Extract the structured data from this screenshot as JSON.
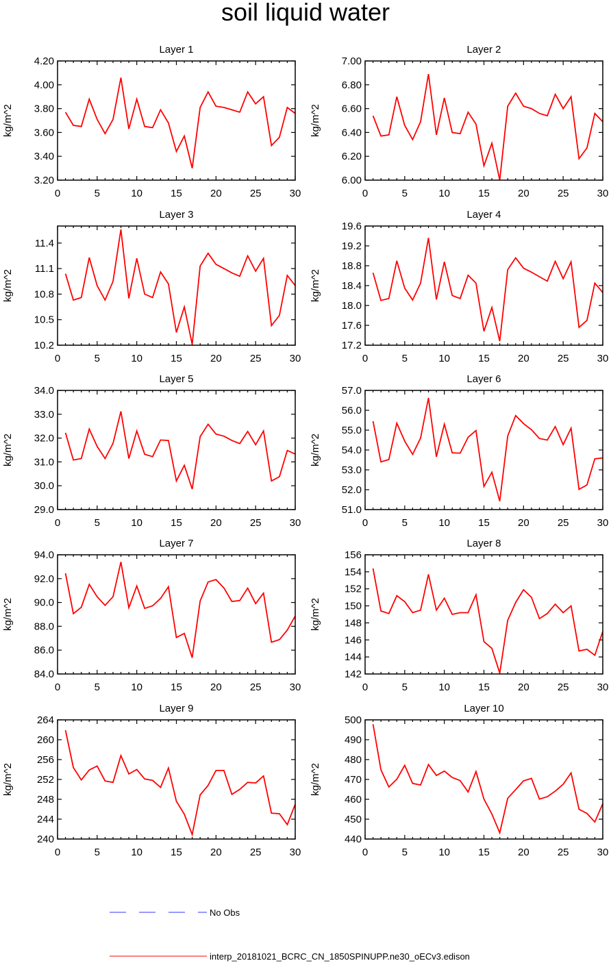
{
  "title": "soil liquid water",
  "legend": {
    "obs_label": "No Obs",
    "obs_color": "#3333ff",
    "model_label": "interp_20181021_BCRC_CN_1850SPINUPP.ne30_oECv3.edison",
    "model_color": "#ff0000"
  },
  "chart_data": [
    {
      "type": "line",
      "title": "Layer 1",
      "ylabel": "kg/m^2",
      "xlim": [
        0,
        30
      ],
      "ylim": [
        3.2,
        4.2
      ],
      "xticks": [
        0,
        5,
        10,
        15,
        20,
        25,
        30
      ],
      "yticks": [
        "3.20",
        "3.40",
        "3.60",
        "3.80",
        "4.00",
        "4.20"
      ],
      "x": [
        1,
        2,
        3,
        4,
        5,
        6,
        7,
        8,
        9,
        10,
        11,
        12,
        13,
        14,
        15,
        16,
        17,
        18,
        19,
        20,
        21,
        22,
        23,
        24,
        25,
        26,
        27,
        28,
        29,
        30
      ],
      "series": [
        {
          "values": [
            3.77,
            3.66,
            3.65,
            3.88,
            3.71,
            3.59,
            3.71,
            4.06,
            3.63,
            3.88,
            3.65,
            3.64,
            3.79,
            3.68,
            3.44,
            3.57,
            3.3,
            3.81,
            3.94,
            3.82,
            3.81,
            3.79,
            3.77,
            3.94,
            3.84,
            3.9,
            3.49,
            3.56,
            3.81,
            3.76
          ]
        }
      ]
    },
    {
      "type": "line",
      "title": "Layer 2",
      "ylabel": "kg/m^2",
      "xlim": [
        0,
        30
      ],
      "ylim": [
        6.0,
        7.0
      ],
      "xticks": [
        0,
        5,
        10,
        15,
        20,
        25,
        30
      ],
      "yticks": [
        "6.00",
        "6.20",
        "6.40",
        "6.60",
        "6.80",
        "7.00"
      ],
      "x": [
        1,
        2,
        3,
        4,
        5,
        6,
        7,
        8,
        9,
        10,
        11,
        12,
        13,
        14,
        15,
        16,
        17,
        18,
        19,
        20,
        21,
        22,
        23,
        24,
        25,
        26,
        27,
        28,
        29,
        30
      ],
      "series": [
        {
          "values": [
            6.54,
            6.37,
            6.38,
            6.7,
            6.46,
            6.34,
            6.49,
            6.89,
            6.38,
            6.69,
            6.4,
            6.39,
            6.57,
            6.47,
            6.12,
            6.31,
            6.0,
            6.62,
            6.73,
            6.62,
            6.6,
            6.56,
            6.54,
            6.72,
            6.6,
            6.7,
            6.18,
            6.27,
            6.56,
            6.49
          ]
        }
      ]
    },
    {
      "type": "line",
      "title": "Layer 3",
      "ylabel": "kg/m^2",
      "xlim": [
        0,
        30
      ],
      "ylim": [
        10.2,
        11.6
      ],
      "xticks": [
        0,
        5,
        10,
        15,
        20,
        25,
        30
      ],
      "yticks": [
        "10.2",
        "10.5",
        "10.8",
        "11.1",
        "11.4"
      ],
      "x": [
        1,
        2,
        3,
        4,
        5,
        6,
        7,
        8,
        9,
        10,
        11,
        12,
        13,
        14,
        15,
        16,
        17,
        18,
        19,
        20,
        21,
        22,
        23,
        24,
        25,
        26,
        27,
        28,
        29,
        30
      ],
      "series": [
        {
          "values": [
            11.04,
            10.73,
            10.76,
            11.23,
            10.9,
            10.73,
            10.95,
            11.56,
            10.75,
            11.22,
            10.8,
            10.76,
            11.06,
            10.92,
            10.35,
            10.65,
            10.21,
            11.13,
            11.28,
            11.15,
            11.1,
            11.05,
            11.01,
            11.25,
            11.07,
            11.22,
            10.43,
            10.55,
            11.02,
            10.9
          ]
        }
      ]
    },
    {
      "type": "line",
      "title": "Layer 4",
      "ylabel": "kg/m^2",
      "xlim": [
        0,
        30
      ],
      "ylim": [
        17.2,
        19.6
      ],
      "xticks": [
        0,
        5,
        10,
        15,
        20,
        25,
        30
      ],
      "yticks": [
        "17.2",
        "17.6",
        "18.0",
        "18.4",
        "18.8",
        "19.2",
        "19.6"
      ],
      "x": [
        1,
        2,
        3,
        4,
        5,
        6,
        7,
        8,
        9,
        10,
        11,
        12,
        13,
        14,
        15,
        16,
        17,
        18,
        19,
        20,
        21,
        22,
        23,
        24,
        25,
        26,
        27,
        28,
        29,
        30
      ],
      "series": [
        {
          "values": [
            18.66,
            18.1,
            18.14,
            18.9,
            18.35,
            18.11,
            18.45,
            19.36,
            18.12,
            18.88,
            18.2,
            18.14,
            18.61,
            18.45,
            17.48,
            17.96,
            17.28,
            18.72,
            18.96,
            18.75,
            18.67,
            18.58,
            18.49,
            18.89,
            18.54,
            18.88,
            17.56,
            17.7,
            18.45,
            18.26
          ]
        }
      ]
    },
    {
      "type": "line",
      "title": "Layer 5",
      "ylabel": "kg/m^2",
      "xlim": [
        0,
        30
      ],
      "ylim": [
        29.0,
        34.0
      ],
      "xticks": [
        0,
        5,
        10,
        15,
        20,
        25,
        30
      ],
      "yticks": [
        "29.0",
        "30.0",
        "31.0",
        "32.0",
        "33.0",
        "34.0"
      ],
      "x": [
        1,
        2,
        3,
        4,
        5,
        6,
        7,
        8,
        9,
        10,
        11,
        12,
        13,
        14,
        15,
        16,
        17,
        18,
        19,
        20,
        21,
        22,
        23,
        24,
        25,
        26,
        27,
        28,
        29,
        30
      ],
      "series": [
        {
          "values": [
            32.22,
            31.08,
            31.14,
            32.38,
            31.65,
            31.14,
            31.78,
            33.12,
            31.14,
            32.3,
            31.32,
            31.22,
            31.92,
            31.9,
            30.2,
            30.86,
            29.86,
            32.06,
            32.58,
            32.17,
            32.08,
            31.9,
            31.77,
            32.28,
            31.72,
            32.3,
            30.2,
            30.38,
            31.48,
            31.33
          ]
        }
      ]
    },
    {
      "type": "line",
      "title": "Layer 6",
      "ylabel": "kg/m^2",
      "xlim": [
        0,
        30
      ],
      "ylim": [
        51.0,
        57.0
      ],
      "xticks": [
        0,
        5,
        10,
        15,
        20,
        25,
        30
      ],
      "yticks": [
        "51.0",
        "52.0",
        "53.0",
        "54.0",
        "55.0",
        "56.0",
        "57.0"
      ],
      "x": [
        1,
        2,
        3,
        4,
        5,
        6,
        7,
        8,
        9,
        10,
        11,
        12,
        13,
        14,
        15,
        16,
        17,
        18,
        19,
        20,
        21,
        22,
        23,
        24,
        25,
        26,
        27,
        28,
        29,
        30
      ],
      "series": [
        {
          "values": [
            55.45,
            53.4,
            53.52,
            55.35,
            54.45,
            53.78,
            54.6,
            56.62,
            53.66,
            55.3,
            53.86,
            53.84,
            54.64,
            54.98,
            52.16,
            52.88,
            51.42,
            54.7,
            55.73,
            55.33,
            55.02,
            54.58,
            54.5,
            55.18,
            54.27,
            55.1,
            52.02,
            52.24,
            53.56,
            53.6
          ]
        }
      ]
    },
    {
      "type": "line",
      "title": "Layer 7",
      "ylabel": "kg/m^2",
      "xlim": [
        0,
        30
      ],
      "ylim": [
        84.0,
        94.0
      ],
      "xticks": [
        0,
        5,
        10,
        15,
        20,
        25,
        30
      ],
      "yticks": [
        "84.0",
        "86.0",
        "88.0",
        "90.0",
        "92.0",
        "94.0"
      ],
      "x": [
        1,
        2,
        3,
        4,
        5,
        6,
        7,
        8,
        9,
        10,
        11,
        12,
        13,
        14,
        15,
        16,
        17,
        18,
        19,
        20,
        21,
        22,
        23,
        24,
        25,
        26,
        27,
        28,
        29,
        30
      ],
      "series": [
        {
          "values": [
            92.44,
            89.06,
            89.6,
            91.52,
            90.48,
            89.76,
            90.48,
            93.4,
            89.56,
            91.38,
            89.5,
            89.72,
            90.34,
            91.32,
            87.06,
            87.4,
            85.36,
            90.12,
            91.72,
            91.92,
            91.22,
            90.08,
            90.16,
            91.2,
            89.9,
            90.78,
            86.66,
            86.88,
            87.68,
            88.86
          ]
        }
      ]
    },
    {
      "type": "line",
      "title": "Layer 8",
      "ylabel": "kg/m^2",
      "xlim": [
        0,
        30
      ],
      "ylim": [
        142,
        156
      ],
      "xticks": [
        0,
        5,
        10,
        15,
        20,
        25,
        30
      ],
      "yticks": [
        "142",
        "144",
        "146",
        "148",
        "150",
        "152",
        "154",
        "156"
      ],
      "x": [
        1,
        2,
        3,
        4,
        5,
        6,
        7,
        8,
        9,
        10,
        11,
        12,
        13,
        14,
        15,
        16,
        17,
        18,
        19,
        20,
        21,
        22,
        23,
        24,
        25,
        26,
        27,
        28,
        29,
        30
      ],
      "series": [
        {
          "values": [
            154.4,
            149.4,
            149.1,
            151.2,
            150.5,
            149.2,
            149.5,
            153.7,
            149.5,
            150.9,
            149.0,
            149.2,
            149.2,
            151.3,
            145.8,
            145.0,
            142.1,
            148.3,
            150.4,
            151.9,
            151.0,
            148.5,
            149.1,
            150.2,
            149.2,
            150.0,
            144.7,
            144.9,
            144.2,
            147.0
          ]
        }
      ]
    },
    {
      "type": "line",
      "title": "Layer 9",
      "ylabel": "kg/m^2",
      "xlim": [
        0,
        30
      ],
      "ylim": [
        240,
        264
      ],
      "xticks": [
        0,
        5,
        10,
        15,
        20,
        25,
        30
      ],
      "yticks": [
        "240",
        "244",
        "248",
        "252",
        "256",
        "260",
        "264"
      ],
      "x": [
        1,
        2,
        3,
        4,
        5,
        6,
        7,
        8,
        9,
        10,
        11,
        12,
        13,
        14,
        15,
        16,
        17,
        18,
        19,
        20,
        21,
        22,
        23,
        24,
        25,
        26,
        27,
        28,
        29,
        30
      ],
      "series": [
        {
          "values": [
            261.9,
            254.4,
            251.9,
            253.9,
            254.7,
            251.7,
            251.4,
            256.8,
            253.1,
            254.0,
            252.1,
            251.8,
            250.4,
            254.3,
            247.6,
            245.0,
            240.9,
            248.9,
            250.8,
            253.8,
            253.8,
            249.0,
            250.0,
            251.4,
            251.3,
            252.7,
            245.2,
            245.1,
            242.9,
            247.0
          ]
        }
      ]
    },
    {
      "type": "line",
      "title": "Layer 10",
      "ylabel": "kg/m^2",
      "xlim": [
        0,
        30
      ],
      "ylim": [
        440,
        500
      ],
      "xticks": [
        0,
        5,
        10,
        15,
        20,
        25,
        30
      ],
      "yticks": [
        "440",
        "450",
        "460",
        "470",
        "480",
        "490",
        "500"
      ],
      "x": [
        1,
        2,
        3,
        4,
        5,
        6,
        7,
        8,
        9,
        10,
        11,
        12,
        13,
        14,
        15,
        16,
        17,
        18,
        19,
        20,
        21,
        22,
        23,
        24,
        25,
        26,
        27,
        28,
        29,
        30
      ],
      "series": [
        {
          "values": [
            497.8,
            474.9,
            466.2,
            470.1,
            477.1,
            468.0,
            467.2,
            477.5,
            472.0,
            474.2,
            471.0,
            469.4,
            463.7,
            474.0,
            460.1,
            452.6,
            443.1,
            460.5,
            464.9,
            469.3,
            470.5,
            460.1,
            461.3,
            464.1,
            467.6,
            473.3,
            455.0,
            452.9,
            448.6,
            457.8
          ]
        }
      ]
    }
  ]
}
